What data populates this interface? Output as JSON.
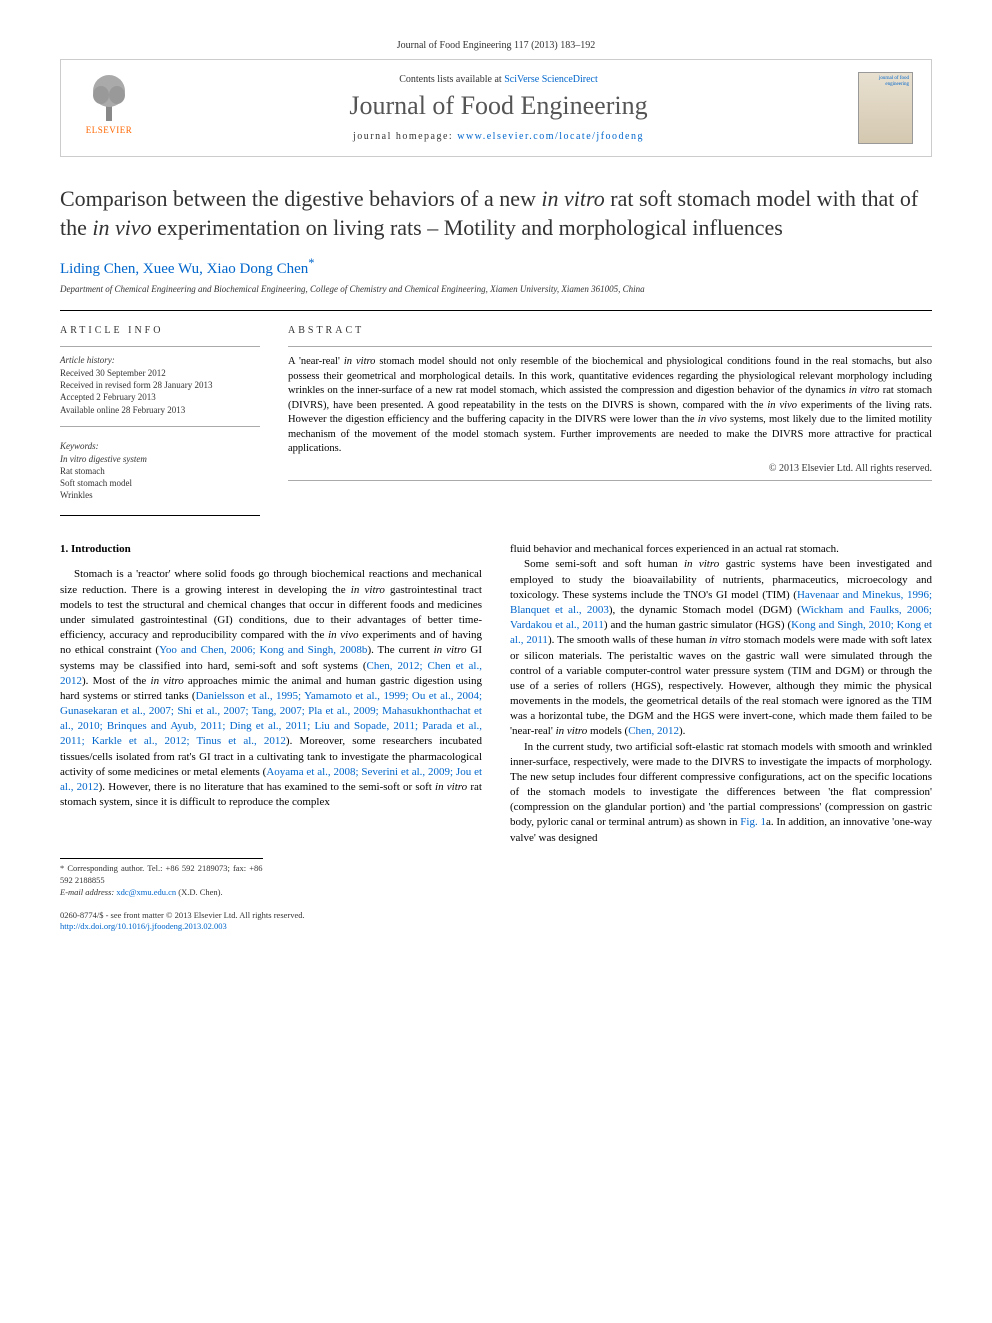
{
  "citation": "Journal of Food Engineering 117 (2013) 183–192",
  "header": {
    "publisher": "ELSEVIER",
    "contents_prefix": "Contents lists available at ",
    "contents_link": "SciVerse ScienceDirect",
    "journal": "Journal of Food Engineering",
    "homepage_prefix": "journal homepage: ",
    "homepage_link": "www.elsevier.com/locate/jfoodeng",
    "cover_text": "journal of food engineering"
  },
  "title_parts": {
    "p1": "Comparison between the digestive behaviors of a new ",
    "i1": "in vitro",
    "p2": " rat soft stomach model with that of the ",
    "i2": "in vivo",
    "p3": " experimentation on living rats – Motility and morphological influences"
  },
  "authors": "Liding Chen, Xuee Wu, Xiao Dong Chen",
  "author_sup": "*",
  "affiliation": "Department of Chemical Engineering and Biochemical Engineering, College of Chemistry and Chemical Engineering, Xiamen University, Xiamen 361005, China",
  "article_info": {
    "label": "ARTICLE INFO",
    "history_label": "Article history:",
    "history": [
      "Received 30 September 2012",
      "Received in revised form 28 January 2013",
      "Accepted 2 February 2013",
      "Available online 28 February 2013"
    ],
    "keywords_label": "Keywords:",
    "keywords": [
      "In vitro digestive system",
      "Rat stomach",
      "Soft stomach model",
      "Wrinkles"
    ]
  },
  "abstract": {
    "label": "ABSTRACT",
    "text_parts": [
      "A 'near-real' ",
      "in vitro",
      " stomach model should not only resemble of the biochemical and physiological conditions found in the real stomachs, but also possess their geometrical and morphological details. In this work, quantitative evidences regarding the physiological relevant morphology including wrinkles on the inner-surface of a new rat model stomach, which assisted the compression and digestion behavior of the dynamics ",
      "in vitro",
      " rat stomach (DIVRS), have been presented. A good repeatability in the tests on the DIVRS is shown, compared with the ",
      "in vivo",
      " experiments of the living rats. However the digestion efficiency and the buffering capacity in the DIVRS were lower than the ",
      "in vivo",
      " systems, most likely due to the limited motility mechanism of the movement of the model stomach system. Further improvements are needed to make the DIVRS more attractive for practical applications."
    ],
    "copyright": "© 2013 Elsevier Ltd. All rights reserved."
  },
  "body": {
    "heading": "1. Introduction",
    "col1_p1_parts": [
      "Stomach is a 'reactor' where solid foods go through biochemical reactions and mechanical size reduction. There is a growing interest in developing the ",
      "in vitro",
      " gastrointestinal tract models to test the structural and chemical changes that occur in different foods and medicines under simulated gastrointestinal (GI) conditions, due to their advantages of better time-efficiency, accuracy and reproducibility compared with the ",
      "in vivo",
      " experiments and of having no ethical constraint (",
      "Yoo and Chen, 2006; Kong and Singh, 2008b",
      "). The current ",
      "in vitro",
      " GI systems may be classified into hard, semi-soft and soft systems (",
      "Chen, 2012; Chen et al., 2012",
      "). Most of the ",
      "in vitro",
      " approaches mimic the animal and human gastric digestion using hard systems or stirred tanks (",
      "Danielsson et al., 1995; Yamamoto et al., 1999; Ou et al., 2004; Gunasekaran et al., 2007; Shi et al., 2007; Tang, 2007; Pla et al., 2009; Mahasukhonthachat et al., 2010; Brinques and Ayub, 2011; Ding et al., 2011; Liu and Sopade, 2011; Parada et al., 2011; Karkle et al., 2012; Tinus et al., 2012",
      "). Moreover, some researchers incubated tissues/cells isolated from rat's GI tract in a cultivating tank to investigate the pharmacological activity of some medicines or metal elements (",
      "Aoyama et al., 2008; Severini et al., 2009; Jou et al., 2012",
      "). However, there is no literature that has examined to the semi-soft or soft ",
      "in vitro",
      " rat stomach system, since it is difficult to reproduce the complex"
    ],
    "col2_p1": "fluid behavior and mechanical forces experienced in an actual rat stomach.",
    "col2_p2_parts": [
      "Some semi-soft and soft human ",
      "in vitro",
      " gastric systems have been investigated and employed to study the bioavailability of nutrients, pharmaceutics, microecology and toxicology. These systems include the TNO's GI model (TIM) (",
      "Havenaar and Minekus, 1996; Blanquet et al., 2003",
      "), the dynamic Stomach model (DGM) (",
      "Wickham and Faulks, 2006; Vardakou et al., 2011",
      ") and the human gastric simulator (HGS) (",
      "Kong and Singh, 2010; Kong et al., 2011",
      "). The smooth walls of these human ",
      "in vitro",
      " stomach models were made with soft latex or silicon materials. The peristaltic waves on the gastric wall were simulated through the control of a variable computer-control water pressure system (TIM and DGM) or through the use of a series of rollers (HGS), respectively. However, although they mimic the physical movements in the models, the geometrical details of the real stomach were ignored as the TIM was a horizontal tube, the DGM and the HGS were invert-cone, which made them failed to be 'near-real' ",
      "in vitro",
      " models (",
      "Chen, 2012",
      ")."
    ],
    "col2_p3_parts": [
      "In the current study, two artificial soft-elastic rat stomach models with smooth and wrinkled inner-surface, respectively, were made to the DIVRS to investigate the impacts of morphology. The new setup includes four different compressive configurations, act on the specific locations of the stomach models to investigate the differences between 'the flat compression' (compression on the glandular portion) and 'the partial compressions' (compression on gastric body, pyloric canal or terminal antrum) as shown in ",
      "Fig. 1",
      "a. In addition, an innovative 'one-way valve' was designed"
    ]
  },
  "corresponding": {
    "line1": "* Corresponding author. Tel.: +86 592 2189073; fax: +86 592 2188855",
    "line2_label": "E-mail address: ",
    "line2_email": "xdc@xmu.edu.cn",
    "line2_suffix": " (X.D. Chen)."
  },
  "footer": {
    "line1": "0260-8774/$ - see front matter © 2013 Elsevier Ltd. All rights reserved.",
    "line2": "http://dx.doi.org/10.1016/j.jfoodeng.2013.02.003"
  },
  "colors": {
    "link": "#0066cc",
    "publisher_orange": "#ff6600",
    "text": "#000000",
    "muted": "#333333",
    "border": "#cccccc"
  }
}
